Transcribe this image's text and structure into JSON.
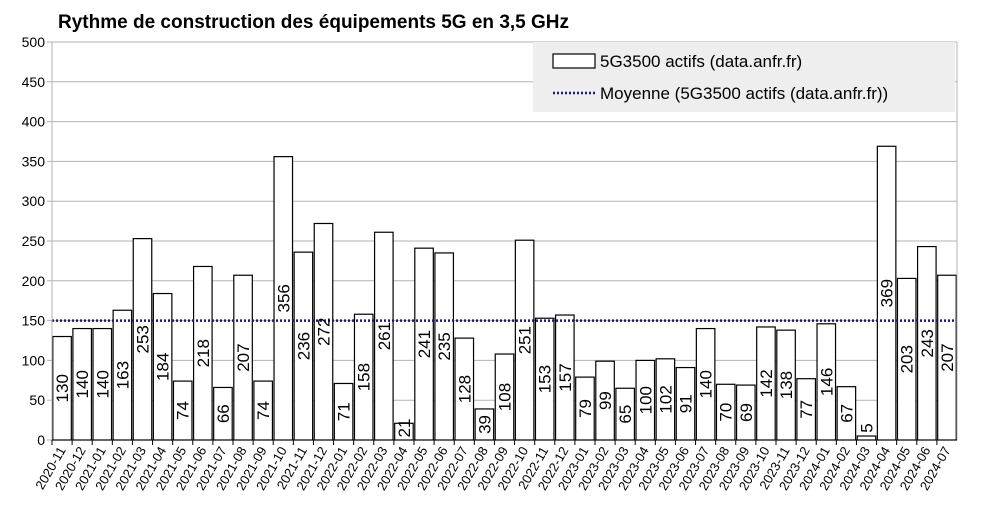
{
  "chart_data": {
    "type": "bar",
    "title": "Rythme de construction des équipements 5G en 3,5 GHz",
    "xlabel": "",
    "ylabel": "",
    "ylim": [
      0,
      500
    ],
    "yticks": [
      0,
      50,
      100,
      150,
      200,
      250,
      300,
      350,
      400,
      450,
      500
    ],
    "grid": true,
    "legend_position": "top-right",
    "categories": [
      "2020-11",
      "2020-12",
      "2021-01",
      "2021-02",
      "2021-03",
      "2021-04",
      "2021-05",
      "2021-06",
      "2021-07",
      "2021-08",
      "2021-09",
      "2021-10",
      "2021-11",
      "2021-12",
      "2022-01",
      "2022-02",
      "2022-03",
      "2022-04",
      "2022-05",
      "2022-06",
      "2022-07",
      "2022-08",
      "2022-09",
      "2022-10",
      "2022-11",
      "2022-12",
      "2023-01",
      "2023-02",
      "2023-03",
      "2023-04",
      "2023-05",
      "2023-06",
      "2023-07",
      "2023-08",
      "2023-09",
      "2023-10",
      "2023-11",
      "2023-12",
      "2024-01",
      "2024-02",
      "2024-03",
      "2024-04",
      "2024-05",
      "2024-06",
      "2024-07"
    ],
    "series": [
      {
        "name": "5G3500 actifs (data.anfr.fr)",
        "type": "bar",
        "color": "#ffffff",
        "values": [
          130,
          140,
          140,
          163,
          253,
          184,
          74,
          218,
          66,
          207,
          74,
          356,
          236,
          272,
          71,
          158,
          261,
          21,
          241,
          235,
          128,
          39,
          108,
          251,
          153,
          157,
          79,
          99,
          65,
          100,
          102,
          91,
          140,
          70,
          69,
          142,
          138,
          77,
          146,
          67,
          5,
          369,
          203,
          243,
          207
        ]
      },
      {
        "name": "Moyenne (5G3500 actifs (data.anfr.fr))",
        "type": "line",
        "style": "dotted",
        "color": "#1a1a6e",
        "value": 150
      }
    ]
  }
}
